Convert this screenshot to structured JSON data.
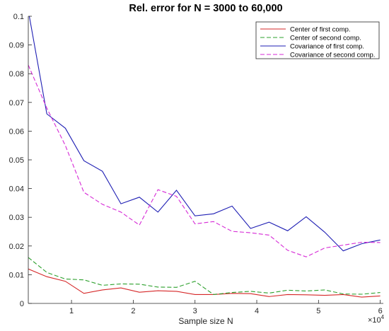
{
  "chart_data": {
    "type": "line",
    "title": "Rel.  error for N = 3000 to 60,000",
    "xlabel": "Sample size N",
    "ylabel": "",
    "x_exponent_label": "×10",
    "x_exponent_power": "4",
    "xlim": [
      0.3,
      6.05
    ],
    "ylim": [
      0,
      0.1
    ],
    "grid": false,
    "legend_position": "top-right",
    "x_ticks": [
      1,
      2,
      3,
      4,
      5,
      6
    ],
    "x_tick_labels": [
      "1",
      "2",
      "3",
      "4",
      "5",
      "6"
    ],
    "y_ticks": [
      0,
      0.01,
      0.02,
      0.03,
      0.04,
      0.05,
      0.06,
      0.07,
      0.08,
      0.09,
      0.1
    ],
    "y_tick_labels": [
      "0",
      "0.01",
      "0.02",
      "0.03",
      "0.04",
      "0.05",
      "0.06",
      "0.07",
      "0.08",
      "0.09",
      "0.1"
    ],
    "x": [
      0.3,
      0.6,
      0.9,
      1.2,
      1.5,
      1.8,
      2.1,
      2.4,
      2.7,
      3.0,
      3.3,
      3.6,
      3.9,
      4.2,
      4.5,
      4.8,
      5.1,
      5.4,
      5.7,
      6.0
    ],
    "series": [
      {
        "name": "Center of first comp.",
        "color": "#d62728",
        "dash": "solid",
        "values": [
          0.012,
          0.0093,
          0.0077,
          0.0035,
          0.0047,
          0.0054,
          0.0039,
          0.0044,
          0.0042,
          0.0031,
          0.0031,
          0.0035,
          0.0034,
          0.0024,
          0.0031,
          0.003,
          0.0028,
          0.0031,
          0.0022,
          0.0026
        ]
      },
      {
        "name": "Center of second comp.",
        "color": "#2ca02c",
        "dash": "dashed",
        "values": [
          0.016,
          0.0108,
          0.0085,
          0.0082,
          0.0063,
          0.0068,
          0.0067,
          0.0057,
          0.0056,
          0.0077,
          0.0031,
          0.0038,
          0.0042,
          0.0036,
          0.0046,
          0.0043,
          0.0047,
          0.0033,
          0.0032,
          0.0038
        ]
      },
      {
        "name": "Covariance of first comp.",
        "color": "#1f1fb4",
        "dash": "solid",
        "values": [
          0.102,
          0.066,
          0.061,
          0.0497,
          0.046,
          0.0347,
          0.037,
          0.0318,
          0.0394,
          0.0305,
          0.0312,
          0.0339,
          0.0261,
          0.0283,
          0.0253,
          0.0302,
          0.0248,
          0.0183,
          0.0208,
          0.0221
        ]
      },
      {
        "name": "Covariance of second comp.",
        "color": "#d62ad6",
        "dash": "dashed",
        "values": [
          0.083,
          0.068,
          0.055,
          0.0387,
          0.0345,
          0.0318,
          0.0273,
          0.0396,
          0.0373,
          0.0277,
          0.0285,
          0.0251,
          0.0246,
          0.0238,
          0.0185,
          0.0162,
          0.0193,
          0.0203,
          0.0213,
          0.0212
        ]
      }
    ]
  }
}
